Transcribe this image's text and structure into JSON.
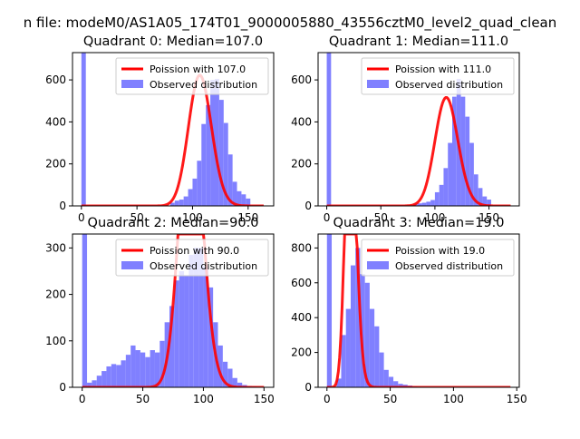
{
  "suptitle": "n file: modeM0/AS1A05_174T01_9000005880_43556cztM0_level2_quad_clean",
  "colors": {
    "hist": "#8080ff",
    "fit": "#ff0000",
    "axis": "#000000"
  },
  "legend": {
    "fit_prefix": "Poission with ",
    "hist_label": "Observed distribution",
    "placement": "upper right"
  },
  "chart_data": [
    {
      "type": "bar",
      "title": "Quadrant 0: Median=107.0",
      "fit_label": "Poission with 107.0",
      "hist_label": "Observed distribution",
      "lambda": 107,
      "xlim": [
        -8,
        173
      ],
      "ylim": [
        0,
        730
      ],
      "xticks": [
        0,
        50,
        100,
        150
      ],
      "yticks": [
        0,
        200,
        400,
        600
      ],
      "bin_edges_start": 0,
      "bin_width": 4,
      "values": [
        730,
        0,
        0,
        0,
        0,
        0,
        0,
        0,
        0,
        0,
        0,
        0,
        0,
        0,
        0,
        0,
        0,
        0,
        0,
        0,
        15,
        25,
        30,
        45,
        80,
        130,
        215,
        390,
        480,
        600,
        605,
        505,
        395,
        245,
        115,
        70,
        55,
        35,
        0,
        0,
        0,
        0
      ],
      "fit_range": [
        0,
        164
      ]
    },
    {
      "type": "bar",
      "title": "Quadrant 1: Median=111.0",
      "fit_label": "Poission with 111.0",
      "hist_label": "Observed distribution",
      "lambda": 111,
      "xlim": [
        -8,
        178
      ],
      "ylim": [
        0,
        730
      ],
      "xticks": [
        0,
        50,
        100,
        150
      ],
      "yticks": [
        0,
        200,
        400,
        600
      ],
      "bin_edges_start": 0,
      "bin_width": 4,
      "values": [
        730,
        0,
        0,
        0,
        0,
        0,
        0,
        0,
        0,
        0,
        0,
        0,
        0,
        0,
        0,
        0,
        0,
        0,
        0,
        0,
        10,
        12,
        15,
        20,
        28,
        65,
        100,
        180,
        300,
        520,
        605,
        520,
        425,
        300,
        150,
        85,
        45,
        30,
        0,
        0,
        0,
        0,
        0
      ],
      "fit_range": [
        0,
        170
      ]
    },
    {
      "type": "bar",
      "title": "Quadrant 2: Median=90.0",
      "fit_label": "Poission with 90.0",
      "hist_label": "Observed distribution",
      "lambda": 90,
      "xlim": [
        -8,
        158
      ],
      "ylim": [
        0,
        330
      ],
      "xticks": [
        0,
        50,
        100,
        150
      ],
      "yticks": [
        0,
        100,
        200,
        300
      ],
      "bin_edges_start": 0,
      "bin_width": 4,
      "values": [
        330,
        10,
        15,
        25,
        35,
        45,
        50,
        48,
        58,
        70,
        90,
        80,
        75,
        65,
        80,
        75,
        100,
        140,
        175,
        230,
        250,
        240,
        285,
        300,
        300,
        260,
        215,
        140,
        90,
        55,
        40,
        20,
        10,
        5,
        3,
        2,
        1,
        0
      ],
      "fit_range": [
        0,
        150
      ]
    },
    {
      "type": "bar",
      "title": "Quadrant 3: Median=19.0",
      "fit_label": "Poission with 19.0",
      "hist_label": "Observed distribution",
      "lambda": 19,
      "xlim": [
        -7,
        152
      ],
      "ylim": [
        0,
        880
      ],
      "xticks": [
        0,
        50,
        100,
        150
      ],
      "yticks": [
        0,
        200,
        400,
        600,
        800
      ],
      "bin_edges_start": 0,
      "bin_width": 3.75,
      "values": [
        880,
        0,
        50,
        300,
        450,
        700,
        800,
        650,
        600,
        450,
        350,
        200,
        100,
        60,
        35,
        20,
        15,
        10,
        5,
        3,
        2,
        1,
        1,
        0,
        0,
        0,
        0,
        0,
        0,
        0,
        0,
        0,
        0,
        0,
        0,
        0,
        0,
        0,
        0
      ],
      "fit_range": [
        0,
        145
      ]
    }
  ]
}
